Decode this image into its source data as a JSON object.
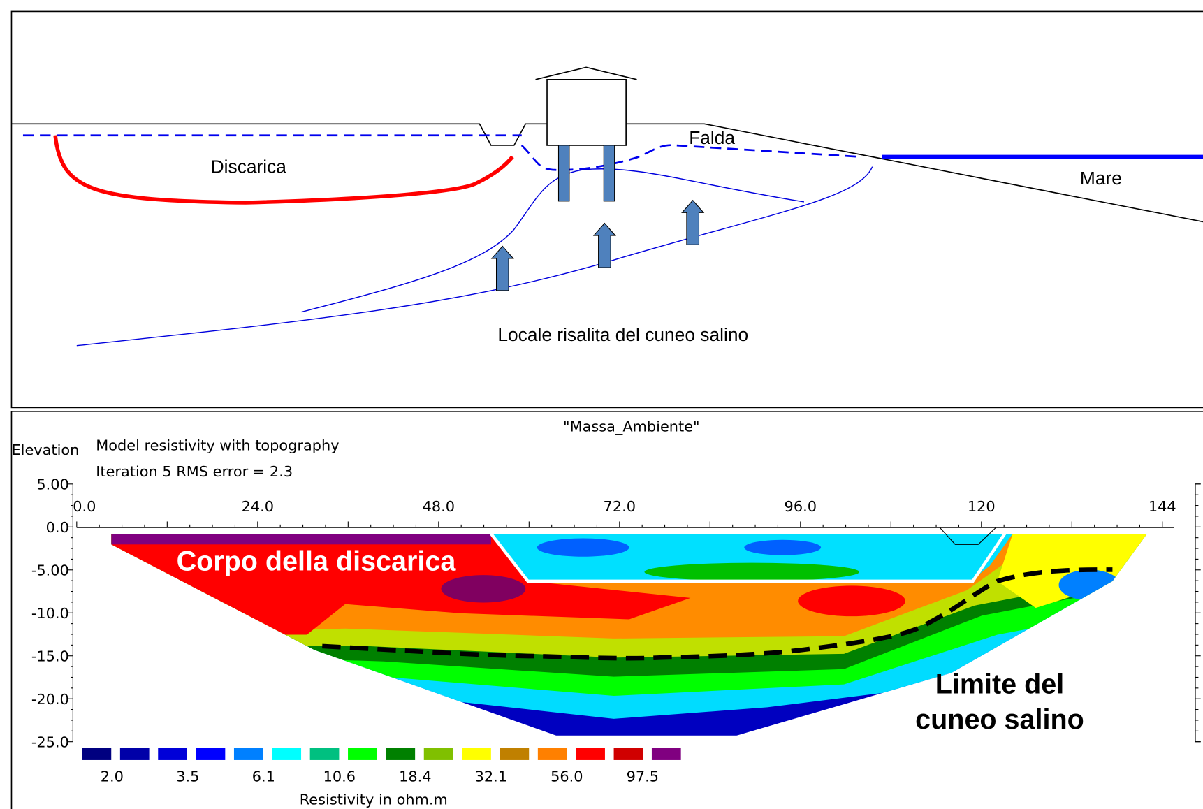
{
  "diagram": {
    "labels": {
      "landfill": "Discarica",
      "water_table": "Falda",
      "sea": "Mare",
      "upwelling": "Locale risalita del cuneo salino"
    }
  },
  "section": {
    "title": "\"Massa_Ambiente\"",
    "y_axis_label": "Elevation",
    "subtitle": "Model resistivity with topography",
    "iteration": "Iteration 5 RMS error = 2.3",
    "yticks": [
      "5.00",
      "0.0",
      "-5.00",
      "-10.0",
      "-15.0",
      "-20.0",
      "-25.0"
    ],
    "xticks": [
      "0.0",
      "24.0",
      "48.0",
      "72.0",
      "96.0",
      "120",
      "144"
    ],
    "legend": {
      "labels": [
        "2.0",
        "3.5",
        "6.1",
        "10.6",
        "18.4",
        "32.1",
        "56.0",
        "97.5"
      ],
      "title": "Resistivity in ohm.m"
    },
    "annotations": {
      "landfill_body": "Corpo della discarica",
      "wedge_limit": [
        "Limite del",
        "cuneo salino"
      ]
    }
  }
}
